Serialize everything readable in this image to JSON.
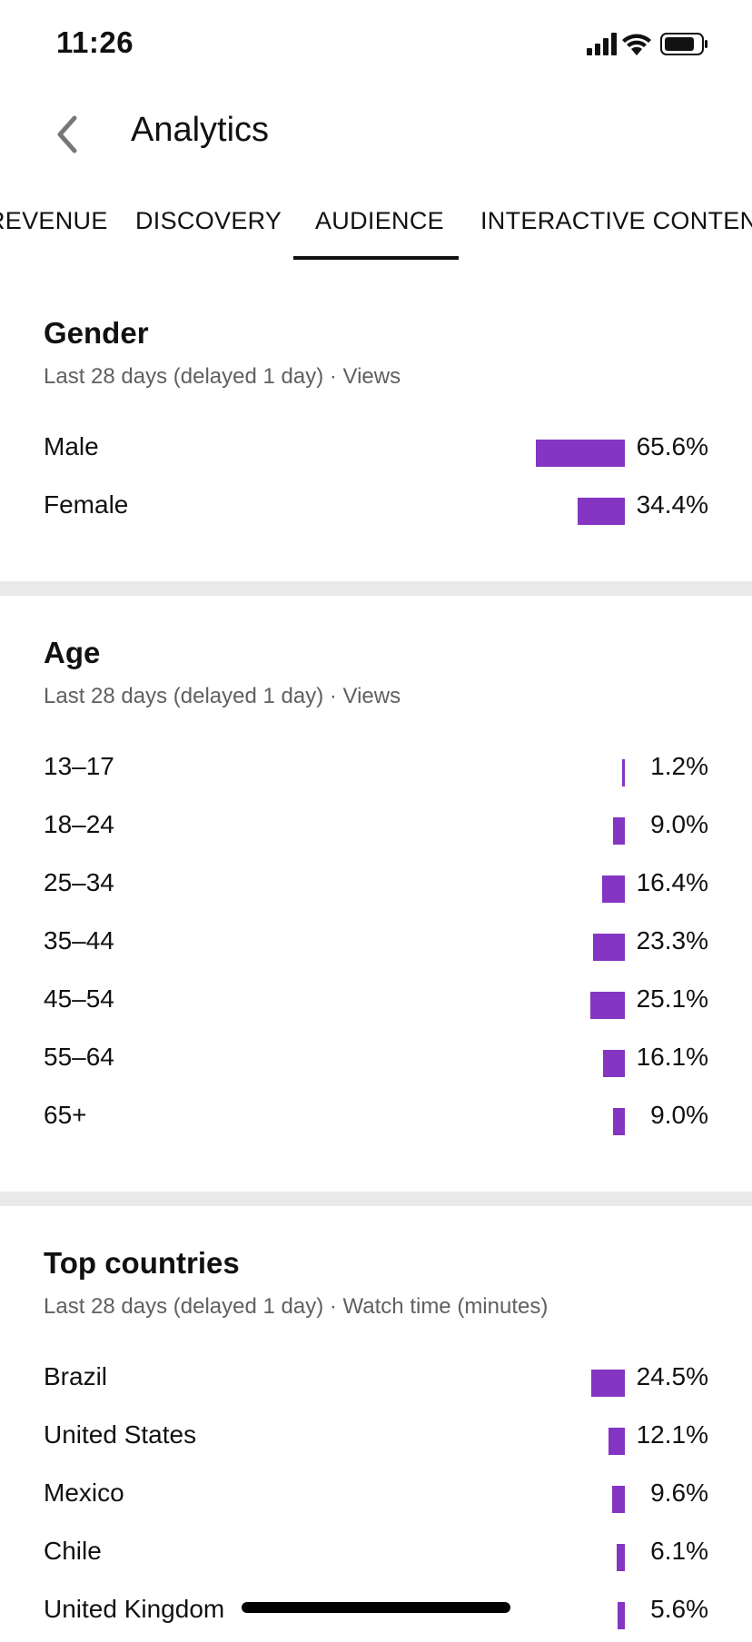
{
  "status_bar": {
    "time": "11:26"
  },
  "header": {
    "title": "Analytics"
  },
  "tabs": [
    {
      "label": "REVENUE"
    },
    {
      "label": "DISCOVERY"
    },
    {
      "label": "AUDIENCE",
      "selected": true
    },
    {
      "label": "INTERACTIVE CONTENT"
    }
  ],
  "colors": {
    "bar": "#8436c2",
    "separator": "#e9e9e9"
  },
  "sections": {
    "gender": {
      "title": "Gender",
      "subtitle": "Last 28 days (delayed 1 day) · Views",
      "rows": [
        {
          "label": "Male",
          "value": "65.6%",
          "percent": 65.6
        },
        {
          "label": "Female",
          "value": "34.4%",
          "percent": 34.4
        }
      ]
    },
    "age": {
      "title": "Age",
      "subtitle": "Last 28 days (delayed 1 day) · Views",
      "rows": [
        {
          "label": "13–17",
          "value": "1.2%",
          "percent": 1.2
        },
        {
          "label": "18–24",
          "value": "9.0%",
          "percent": 9.0
        },
        {
          "label": "25–34",
          "value": "16.4%",
          "percent": 16.4
        },
        {
          "label": "35–44",
          "value": "23.3%",
          "percent": 23.3
        },
        {
          "label": "45–54",
          "value": "25.1%",
          "percent": 25.1
        },
        {
          "label": "55–64",
          "value": "16.1%",
          "percent": 16.1
        },
        {
          "label": "65+",
          "value": "9.0%",
          "percent": 9.0
        }
      ]
    },
    "countries": {
      "title": "Top countries",
      "subtitle": "Last 28 days (delayed 1 day) · Watch time (minutes)",
      "rows": [
        {
          "label": "Brazil",
          "value": "24.5%",
          "percent": 24.5
        },
        {
          "label": "United States",
          "value": "12.1%",
          "percent": 12.1
        },
        {
          "label": "Mexico",
          "value": "9.6%",
          "percent": 9.6
        },
        {
          "label": "Chile",
          "value": "6.1%",
          "percent": 6.1
        },
        {
          "label": "United Kingdom",
          "value": "5.6%",
          "percent": 5.6
        }
      ]
    }
  }
}
